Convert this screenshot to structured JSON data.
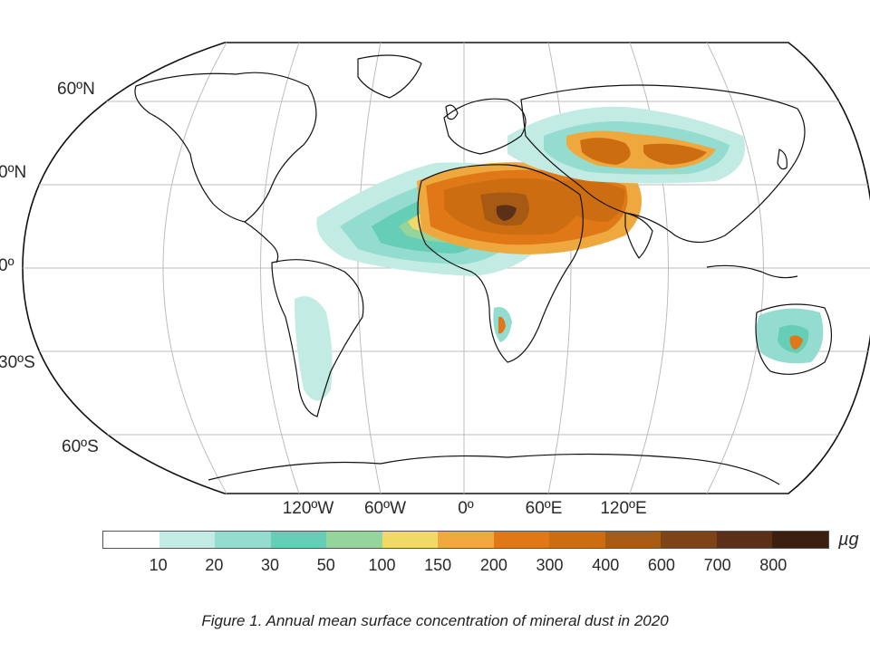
{
  "map": {
    "lat_labels": [
      "60ºN",
      "0ºN",
      "0º",
      "30ºS",
      "60ºS"
    ],
    "lon_labels": [
      "120ºW",
      "60ºW",
      "0º",
      "60ºE",
      "120ºE"
    ]
  },
  "colorbar": {
    "ticks": [
      "10",
      "20",
      "30",
      "50",
      "100",
      "150",
      "200",
      "300",
      "400",
      "600",
      "700",
      "800"
    ],
    "colors": [
      "#ffffff",
      "#c2ebe3",
      "#93dccf",
      "#66cdb6",
      "#95d49a",
      "#f0d966",
      "#efa83d",
      "#e07818",
      "#cd6d12",
      "#a75a14",
      "#7d4418",
      "#5a3118",
      "#3b2010"
    ],
    "unit": "µg"
  },
  "legend_colors": {
    "land_outline": "#111111",
    "graticule": "#bdbdbd"
  },
  "caption": "Figure 1. Annual mean surface concentration of mineral dust in 2020"
}
